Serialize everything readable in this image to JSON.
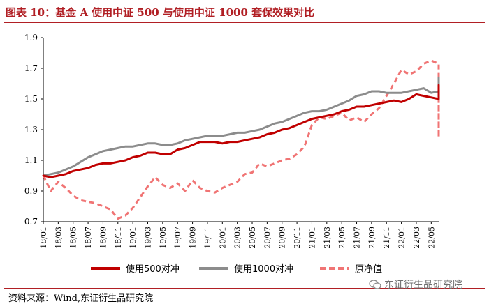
{
  "header": {
    "title": "图表 10：基金 A 使用中证 500 与使用中证 1000 套保效果对比"
  },
  "footer": {
    "source": "资料来源：Wind,东证衍生品研究院",
    "watermark": "东证衍生品研究院"
  },
  "colors": {
    "accent": "#b11f24",
    "s500": "#c00000",
    "s1000": "#8c8c8c",
    "original": "#f07474"
  },
  "chart_data": {
    "type": "line",
    "title": "基金 A 使用中证 500 与使用中证 1000 套保效果对比",
    "xlabel": "",
    "ylabel": "",
    "ylim": [
      0.7,
      1.9
    ],
    "yticks": [
      0.7,
      0.9,
      1.1,
      1.3,
      1.5,
      1.7,
      1.9
    ],
    "ytick_labels": [
      "0.7",
      "0.9",
      "1.1",
      "1.3",
      "1.5",
      "1.7",
      "1.9"
    ],
    "x_start": "18/01",
    "xticks": [
      "18/01",
      "18/03",
      "18/05",
      "18/07",
      "18/09",
      "18/11",
      "19/01",
      "19/03",
      "19/05",
      "19/07",
      "19/09",
      "19/11",
      "20/01",
      "20/03",
      "20/05",
      "20/07",
      "20/09",
      "20/11",
      "21/01",
      "21/03",
      "21/05",
      "21/07",
      "21/09",
      "21/11",
      "22/01",
      "22/03",
      "22/05"
    ],
    "x_end_index": 53,
    "legend_position": "bottom",
    "series": [
      {
        "name": "使用500对冲",
        "style": "solid",
        "color": "#c00000",
        "values": [
          1.0,
          0.99,
          1.0,
          1.01,
          1.03,
          1.04,
          1.05,
          1.07,
          1.08,
          1.08,
          1.09,
          1.1,
          1.12,
          1.13,
          1.15,
          1.15,
          1.14,
          1.14,
          1.17,
          1.18,
          1.2,
          1.22,
          1.22,
          1.22,
          1.21,
          1.22,
          1.22,
          1.23,
          1.24,
          1.25,
          1.27,
          1.28,
          1.3,
          1.31,
          1.33,
          1.35,
          1.37,
          1.38,
          1.39,
          1.4,
          1.42,
          1.43,
          1.45,
          1.45,
          1.46,
          1.47,
          1.48,
          1.49,
          1.48,
          1.5,
          1.53,
          1.52,
          1.51,
          1.5,
          1.52,
          1.5,
          1.53,
          1.59
        ]
      },
      {
        "name": "使用1000对冲",
        "style": "solid",
        "color": "#8c8c8c",
        "values": [
          1.0,
          1.01,
          1.02,
          1.04,
          1.06,
          1.09,
          1.12,
          1.14,
          1.16,
          1.17,
          1.18,
          1.19,
          1.19,
          1.2,
          1.21,
          1.21,
          1.2,
          1.2,
          1.21,
          1.23,
          1.24,
          1.25,
          1.26,
          1.26,
          1.26,
          1.27,
          1.28,
          1.28,
          1.29,
          1.3,
          1.32,
          1.34,
          1.35,
          1.37,
          1.39,
          1.41,
          1.42,
          1.42,
          1.43,
          1.45,
          1.47,
          1.49,
          1.52,
          1.53,
          1.55,
          1.55,
          1.54,
          1.54,
          1.54,
          1.55,
          1.56,
          1.57,
          1.54,
          1.55,
          1.56,
          1.57,
          1.6,
          1.64
        ]
      },
      {
        "name": "原净值",
        "style": "dashed",
        "color": "#f07474",
        "values": [
          1.0,
          0.9,
          0.96,
          0.92,
          0.87,
          0.84,
          0.83,
          0.82,
          0.8,
          0.78,
          0.72,
          0.74,
          0.79,
          0.86,
          0.93,
          0.99,
          0.94,
          0.92,
          0.95,
          0.9,
          0.97,
          0.92,
          0.9,
          0.89,
          0.92,
          0.94,
          0.96,
          1.01,
          1.02,
          1.08,
          1.06,
          1.08,
          1.1,
          1.11,
          1.14,
          1.19,
          1.33,
          1.38,
          1.37,
          1.39,
          1.41,
          1.36,
          1.38,
          1.35,
          1.4,
          1.44,
          1.52,
          1.6,
          1.69,
          1.66,
          1.68,
          1.73,
          1.75,
          1.73,
          1.45,
          1.25,
          1.5,
          1.61
        ]
      }
    ]
  }
}
